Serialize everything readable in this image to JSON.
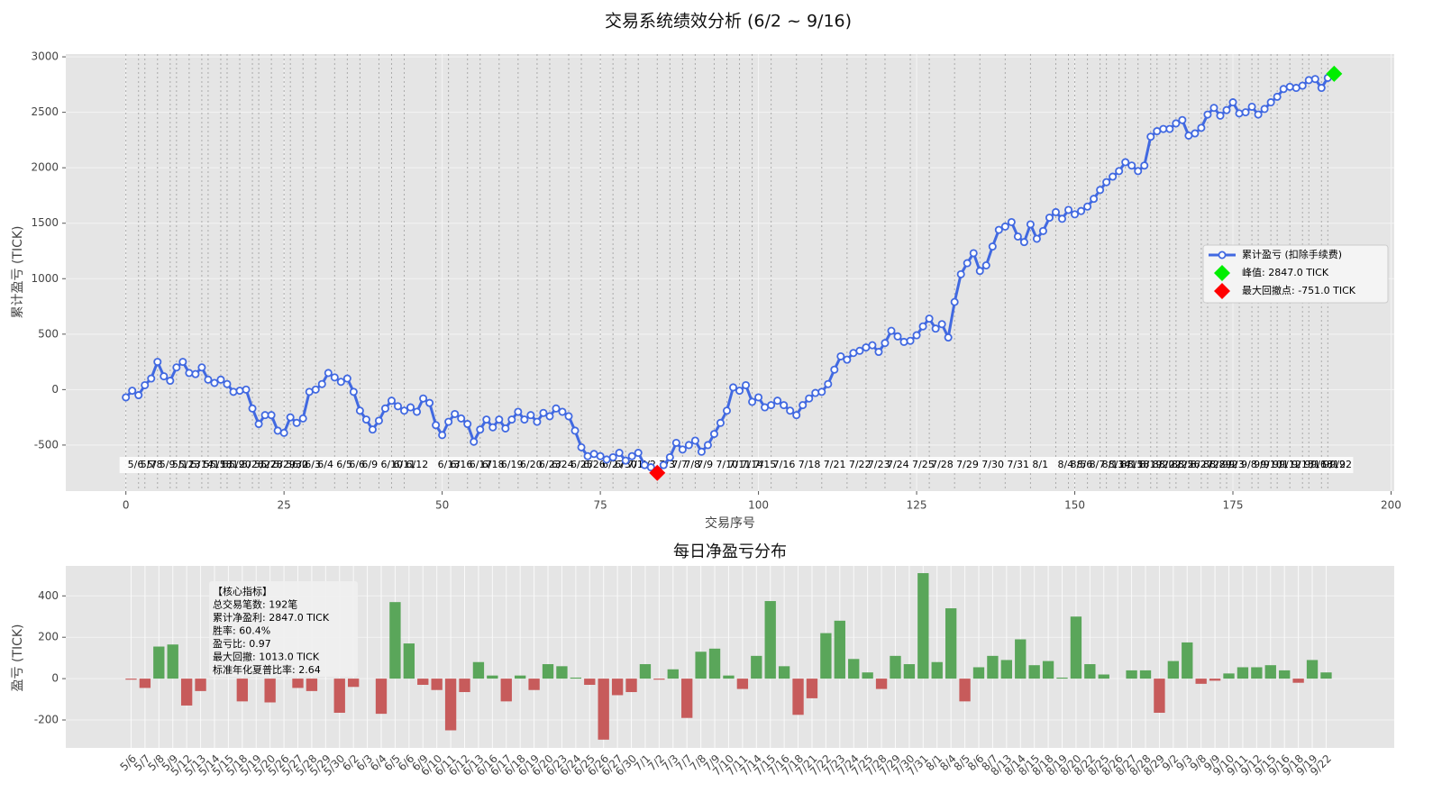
{
  "chart_data": [
    {
      "type": "line",
      "title": "交易系统绩效分析 (6/2 ~ 9/16)",
      "x_label": "交易序号",
      "y_label": "累计盈亏 (TICK)",
      "xlim": [
        -9.5,
        200.5
      ],
      "ylim": [
        -915,
        3025
      ],
      "xticks": [
        0,
        25,
        50,
        75,
        100,
        125,
        150,
        175,
        200
      ],
      "yticks": [
        -500,
        0,
        500,
        1000,
        1500,
        2000,
        2500,
        3000
      ],
      "grid": true,
      "legend": "right",
      "series": [
        {
          "name": "累计盈亏 (扣除手续费)",
          "color": "#4169e1",
          "x": [
            0,
            1,
            2,
            3,
            4,
            5,
            6,
            7,
            8,
            9,
            10,
            11,
            12,
            13,
            14,
            15,
            16,
            17,
            18,
            19,
            20,
            21,
            22,
            23,
            24,
            25,
            26,
            27,
            28,
            29,
            30,
            31,
            32,
            33,
            34,
            35,
            36,
            37,
            38,
            39,
            40,
            41,
            42,
            43,
            44,
            45,
            46,
            47,
            48,
            49,
            50,
            51,
            52,
            53,
            54,
            55,
            56,
            57,
            58,
            59,
            60,
            61,
            62,
            63,
            64,
            65,
            66,
            67,
            68,
            69,
            70,
            71,
            72,
            73,
            74,
            75,
            76,
            77,
            78,
            79,
            80,
            81,
            82,
            83,
            84,
            85,
            86,
            87,
            88,
            89,
            90,
            91,
            92,
            93,
            94,
            95,
            96,
            97,
            98,
            99,
            100,
            101,
            102,
            103,
            104,
            105,
            106,
            107,
            108,
            109,
            110,
            111,
            112,
            113,
            114,
            115,
            116,
            117,
            118,
            119,
            120,
            121,
            122,
            123,
            124,
            125,
            126,
            127,
            128,
            129,
            130,
            131,
            132,
            133,
            134,
            135,
            136,
            137,
            138,
            139,
            140,
            141,
            142,
            143,
            144,
            145,
            146,
            147,
            148,
            149,
            150,
            151,
            152,
            153,
            154,
            155,
            156,
            157,
            158,
            159,
            160,
            161,
            162,
            163,
            164,
            165,
            166,
            167,
            168,
            169,
            170,
            171,
            172,
            173,
            174,
            175,
            176,
            177,
            178,
            179,
            180,
            181,
            182,
            183,
            184,
            185,
            186,
            187,
            188,
            189,
            190,
            191
          ],
          "values": [
            -70,
            -10,
            -50,
            40,
            100,
            250,
            120,
            80,
            200,
            250,
            150,
            140,
            200,
            90,
            60,
            90,
            50,
            -20,
            -10,
            0,
            -170,
            -310,
            -230,
            -230,
            -370,
            -390,
            -250,
            -300,
            -260,
            -20,
            0,
            50,
            150,
            110,
            70,
            100,
            -20,
            -190,
            -270,
            -360,
            -280,
            -170,
            -100,
            -150,
            -190,
            -160,
            -200,
            -80,
            -120,
            -320,
            -410,
            -290,
            -220,
            -260,
            -310,
            -470,
            -360,
            -270,
            -340,
            -270,
            -350,
            -270,
            -200,
            -270,
            -230,
            -290,
            -210,
            -240,
            -170,
            -200,
            -240,
            -370,
            -520,
            -600,
            -580,
            -600,
            -630,
            -610,
            -570,
            -640,
            -600,
            -570,
            -680,
            -700,
            -751,
            -680,
            -610,
            -480,
            -540,
            -500,
            -460,
            -560,
            -500,
            -400,
            -300,
            -190,
            20,
            -10,
            40,
            -110,
            -70,
            -160,
            -140,
            -100,
            -140,
            -190,
            -230,
            -140,
            -80,
            -30,
            -20,
            50,
            180,
            300,
            270,
            330,
            350,
            380,
            400,
            340,
            420,
            530,
            480,
            430,
            440,
            490,
            570,
            640,
            550,
            590,
            470,
            790,
            1040,
            1140,
            1230,
            1070,
            1120,
            1290,
            1440,
            1470,
            1510,
            1380,
            1330,
            1490,
            1360,
            1430,
            1550,
            1600,
            1540,
            1620,
            1580,
            1610,
            1650,
            1720,
            1800,
            1870,
            1920,
            1970,
            2050,
            2020,
            1970,
            2020,
            2280,
            2330,
            2350,
            2350,
            2400,
            2430,
            2290,
            2310,
            2360,
            2480,
            2540,
            2470,
            2520,
            2590,
            2490,
            2500,
            2550,
            2480,
            2530,
            2590,
            2640,
            2710,
            2730,
            2720,
            2740,
            2790,
            2800,
            2720,
            2810,
            2847
          ]
        }
      ],
      "peak": {
        "x": 191,
        "y": 2847,
        "label": "峰值: 2847.0 TICK",
        "color": "#00ee00"
      },
      "drawdown": {
        "x": 84,
        "y": -751,
        "label": "最大回撤点: -751.0 TICK",
        "color": "#ff0000"
      },
      "day_markers": [
        0,
        2,
        3,
        5,
        7,
        8,
        10,
        12,
        13,
        15,
        16,
        18,
        20,
        21,
        23,
        25,
        26,
        28,
        30,
        33,
        35,
        37,
        40,
        42,
        44,
        49,
        51,
        54,
        56,
        59,
        62,
        65,
        67,
        70,
        72,
        75,
        77,
        79,
        81,
        84,
        86,
        88,
        90,
        93,
        95,
        97,
        99,
        102,
        106,
        110,
        114,
        117,
        120,
        124,
        127,
        131,
        135,
        139,
        143,
        147,
        149,
        150,
        152,
        154,
        155,
        157,
        158,
        160,
        162,
        163,
        165,
        166,
        168,
        170,
        171,
        173,
        174,
        176,
        178,
        179,
        181,
        182,
        184,
        186,
        187,
        189,
        190
      ]
    },
    {
      "type": "bar",
      "title": "每日净盈亏分布",
      "y_label": "盈亏 (TICK)",
      "ylim": [
        -335,
        545
      ],
      "yticks": [
        -200,
        0,
        200,
        400
      ],
      "grid": true,
      "positive_color": "#5aa65a",
      "negative_color": "#c75b5b",
      "categories": [
        "5/6",
        "5/7",
        "5/8",
        "5/9",
        "5/12",
        "5/13",
        "5/14",
        "5/15",
        "5/18",
        "5/19",
        "5/20",
        "5/26",
        "5/27",
        "5/28",
        "5/29",
        "5/30",
        "6/2",
        "6/3",
        "6/4",
        "6/5",
        "6/6",
        "6/9",
        "6/10",
        "6/11",
        "6/12",
        "6/13",
        "6/16",
        "6/17",
        "6/18",
        "6/19",
        "6/20",
        "6/23",
        "6/24",
        "6/25",
        "6/26",
        "6/27",
        "6/30",
        "7/1",
        "7/2",
        "7/3",
        "7/7",
        "7/8",
        "7/9",
        "7/10",
        "7/11",
        "7/14",
        "7/15",
        "7/16",
        "7/18",
        "7/21",
        "7/22",
        "7/23",
        "7/24",
        "7/25",
        "7/28",
        "7/29",
        "7/30",
        "7/31",
        "8/1",
        "8/4",
        "8/5",
        "8/6",
        "8/7",
        "8/13",
        "8/14",
        "8/15",
        "8/18",
        "8/19",
        "8/20",
        "8/22",
        "8/25",
        "8/26",
        "8/27",
        "8/28",
        "8/29",
        "9/2",
        "9/3",
        "9/8",
        "9/9",
        "9/10",
        "9/11",
        "9/12",
        "9/15",
        "9/16",
        "9/18",
        "9/19",
        "9/22"
      ],
      "values": [
        -5,
        -45,
        155,
        165,
        -130,
        -60,
        0,
        0,
        -110,
        0,
        -115,
        0,
        -45,
        -60,
        0,
        -165,
        -40,
        0,
        -170,
        370,
        170,
        -30,
        -55,
        -250,
        -65,
        80,
        15,
        -110,
        15,
        -55,
        70,
        60,
        5,
        -30,
        -295,
        -80,
        -65,
        70,
        -5,
        45,
        -190,
        130,
        145,
        15,
        -50,
        110,
        375,
        60,
        -175,
        -95,
        220,
        280,
        95,
        30,
        -50,
        110,
        70,
        510,
        80,
        340,
        -110,
        55,
        110,
        90,
        190,
        65,
        85,
        5,
        300,
        70,
        20,
        0,
        40,
        40,
        -165,
        85,
        175,
        -25,
        -10,
        25,
        55,
        55,
        65,
        40,
        -20,
        90,
        30
      ],
      "annotation_lines": [
        "【核心指标】",
        "总交易笔数: 192笔",
        "累计净盈利: 2847.0 TICK",
        "胜率: 60.4%",
        "盈亏比: 0.97",
        "最大回撤: 1013.0 TICK",
        "标准年化夏普比率: 2.64"
      ]
    }
  ]
}
